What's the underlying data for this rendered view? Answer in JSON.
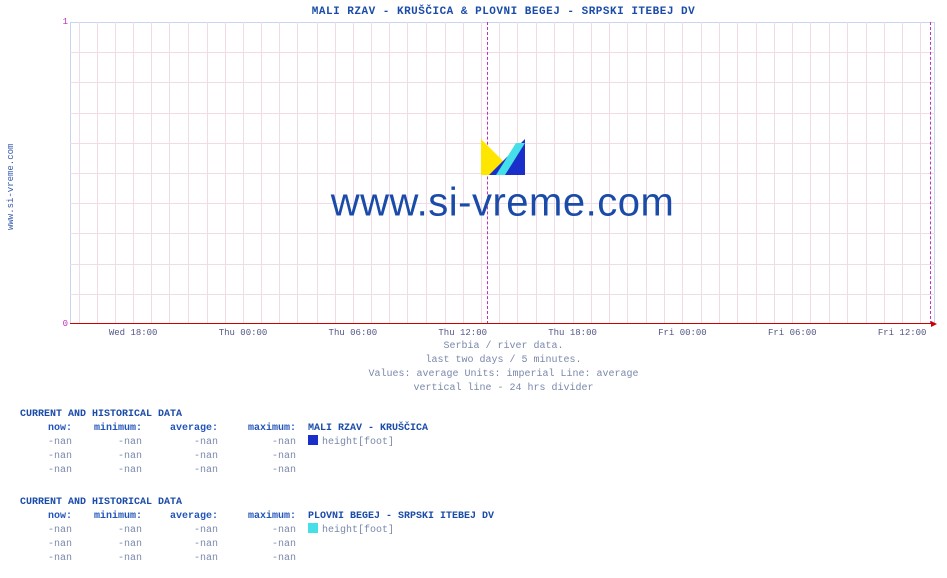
{
  "side_label": "www.si-vreme.com",
  "chart": {
    "type": "line",
    "title": "MALI RZAV -  KRUŠČICA &  PLOVNI BEGEJ -  SRPSKI ITEBEJ DV",
    "title_fontsize": 11,
    "title_color": "#1a4ba8",
    "background_color": "#ffffff",
    "border_color": "#c8d4f0",
    "grid_color": "#f1dbe6",
    "ylim": [
      0,
      1
    ],
    "yticks": [
      0,
      1
    ],
    "ytick_color": "#c030c0",
    "xtick_labels": [
      "Wed 18:00",
      "Thu 00:00",
      "Thu 06:00",
      "Thu 12:00",
      "Thu 18:00",
      "Fri 00:00",
      "Fri 06:00",
      "Fri 12:00"
    ],
    "xtick_pct": [
      7.3,
      20.0,
      32.7,
      45.4,
      58.1,
      70.8,
      83.5,
      96.2
    ],
    "divider_pct": 48.2,
    "divider_color": "#c030c0",
    "end_marker_pct": 99.4,
    "baseline_color": "#cc0000",
    "minor_vgrid_pct": [
      1.0,
      3.1,
      5.2,
      7.3,
      9.4,
      11.5,
      13.6,
      15.8,
      17.9,
      20.0,
      22.1,
      24.2,
      26.3,
      28.5,
      30.6,
      32.7,
      34.8,
      36.9,
      39.0,
      41.2,
      43.3,
      45.4,
      47.5,
      49.6,
      51.7,
      53.9,
      56.0,
      58.1,
      60.2,
      62.3,
      64.4,
      66.6,
      68.7,
      70.8,
      72.9,
      75.0,
      77.1,
      79.3,
      81.4,
      83.5,
      85.6,
      87.7,
      89.8,
      92.0,
      94.1,
      96.2,
      98.3
    ],
    "minor_hgrid_pct": [
      10,
      20,
      30,
      40,
      50,
      60,
      70,
      80,
      90
    ],
    "series": [],
    "watermark_text": "www.si-vreme.com",
    "watermark_logo_colors": {
      "tri1": "#ffe600",
      "tri2": "#1a2fc9",
      "stripe": "#44dfe8"
    }
  },
  "subtitle": {
    "l1": "Serbia / river data.",
    "l2": "last two days / 5 minutes.",
    "l3": "Values: average  Units: imperial  Line: average",
    "l4": "vertical line - 24 hrs  divider"
  },
  "blocks": [
    {
      "head": "CURRENT AND HISTORICAL DATA",
      "col_now": "now:",
      "col_min": "minimum:",
      "col_avg": "average:",
      "col_max": "maximum:",
      "legend_prefix": "  MALI RZAV -  KRUŠČICA",
      "legend_color": "#1a2fc9",
      "legend_metric": "height[foot]",
      "rows": [
        {
          "now": "-nan",
          "min": "-nan",
          "avg": "-nan",
          "max": "-nan"
        },
        {
          "now": "-nan",
          "min": "-nan",
          "avg": "-nan",
          "max": "-nan"
        },
        {
          "now": "-nan",
          "min": "-nan",
          "avg": "-nan",
          "max": "-nan"
        }
      ]
    },
    {
      "head": "CURRENT AND HISTORICAL DATA",
      "col_now": "now:",
      "col_min": "minimum:",
      "col_avg": "average:",
      "col_max": "maximum:",
      "legend_prefix": "  PLOVNI BEGEJ -  SRPSKI ITEBEJ DV",
      "legend_color": "#44dfe8",
      "legend_metric": "height[foot]",
      "rows": [
        {
          "now": "-nan",
          "min": "-nan",
          "avg": "-nan",
          "max": "-nan"
        },
        {
          "now": "-nan",
          "min": "-nan",
          "avg": "-nan",
          "max": "-nan"
        },
        {
          "now": "-nan",
          "min": "-nan",
          "avg": "-nan",
          "max": "-nan"
        }
      ]
    }
  ]
}
